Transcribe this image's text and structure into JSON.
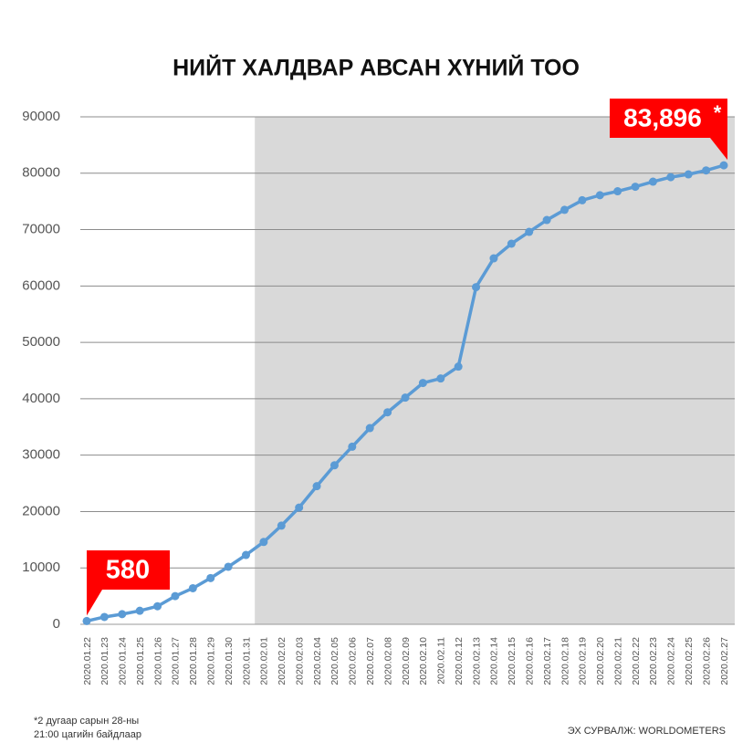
{
  "chart_data": {
    "type": "line",
    "title": "НИЙТ ХАЛДВАР АВСАН ХҮНИЙ ТОО",
    "categories": [
      "2020.01.22",
      "2020.01.23",
      "2020.01.24",
      "2020.01.25",
      "2020.01.26",
      "2020.01.27",
      "2020.01.28",
      "2020.01.29",
      "2020.01.30",
      "2020.01.31",
      "2020.02.01",
      "2020.02.02",
      "2020.02.03",
      "2020.02.04",
      "2020.02.05",
      "2020.02.06",
      "2020.02.07",
      "2020.02.08",
      "2020.02.09",
      "2020.02.10",
      "2020.02.11",
      "2020.02.12",
      "2020.02.13",
      "2020.02.14",
      "2020.02.15",
      "2020.02.16",
      "2020.02.17",
      "2020.02.18",
      "2020.02.19",
      "2020.02.20",
      "2020.02.21",
      "2020.02.22",
      "2020.02.23",
      "2020.02.24",
      "2020.02.25",
      "2020.02.26",
      "2020.02.27"
    ],
    "values": [
      580,
      1300,
      1800,
      2400,
      3200,
      5000,
      6400,
      8200,
      10200,
      12300,
      14600,
      17500,
      20700,
      24500,
      28200,
      31500,
      34800,
      37600,
      40200,
      42800,
      43600,
      45700,
      59800,
      64900,
      67500,
      69600,
      71700,
      73500,
      75200,
      76100,
      76800,
      77600,
      78500,
      79300,
      79800,
      80500,
      81400
    ],
    "color": "#5b9bd5",
    "ylim": [
      0,
      90000
    ],
    "yticks": [
      0,
      10000,
      20000,
      30000,
      40000,
      50000,
      60000,
      70000,
      80000,
      90000
    ],
    "grid": true,
    "annotations": [
      "580",
      "83,896",
      "*"
    ],
    "footnote": [
      "*2 дугаар сарын 28-ны",
      "21:00 цагийн байдлаар"
    ],
    "source": "ЭХ СУРВАЛЖ: WORLDOMETERS"
  }
}
